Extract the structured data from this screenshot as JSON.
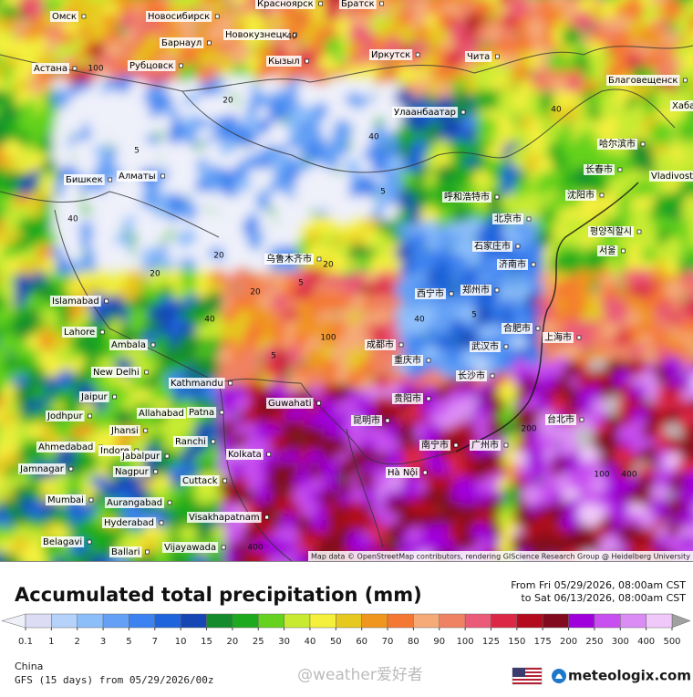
{
  "map": {
    "cities": [
      "Омск",
      "Новосибирск",
      "Красноярск",
      "Братск",
      "Барнаул",
      "Новокузнецк",
      "Рубцовск",
      "Астана",
      "Кызыл",
      "Иркутск",
      "Чита",
      "Улаанбаатар",
      "Благовещенск",
      "Хабаровск",
      "Алматы",
      "Бишкек",
      "哈尔滨市",
      "长春市",
      "Vladivostok",
      "沈阳市",
      "呼和浩特市",
      "北京市",
      "평양직할시",
      "石家庄市",
      "乌鲁木齐市",
      "济南市",
      "서울",
      "Islamabad",
      "西宁市",
      "郑州市",
      "Lahore",
      "合肥市",
      "成都市",
      "上海市",
      "Ambala",
      "武汉市",
      "重庆市",
      "New Delhi",
      "Kathmandu",
      "长沙市",
      "Jaipur",
      "Guwahati",
      "贵阳市",
      "Jodhpur",
      "Allahabad",
      "Patna",
      "台北市",
      "昆明市",
      "Jhansi",
      "广州市",
      "南宁市",
      "Ahmedabad",
      "Ranchi",
      "Indore",
      "Kolkata",
      "Jabalpur",
      "Jamnagar",
      "Nagpur",
      "Hà Nội",
      "Cuttack",
      "Mumbai",
      "Aurangabad",
      "Hyderabad",
      "Visakhapatnam",
      "Belagavi",
      "Vijayawada",
      "Ballari"
    ],
    "contour_labels": [
      40,
      20,
      100,
      40,
      5,
      5,
      20,
      40,
      5,
      20,
      40,
      100,
      5,
      20,
      40,
      100,
      200,
      400,
      400,
      20,
      5,
      40
    ],
    "attribution": "Map data © OpenStreetMap contributors, rendering GIScience Research Group @ Heidelberg University"
  },
  "legend": {
    "title": "Accumulated total precipitation (mm)",
    "period_from": "From Fri 05/29/2026, 08:00am CST",
    "period_to": "to Sat 06/13/2026, 08:00am CST",
    "ticks": [
      0.1,
      1,
      2,
      3,
      5,
      7,
      10,
      15,
      20,
      25,
      30,
      40,
      50,
      60,
      70,
      80,
      90,
      100,
      125,
      150,
      175,
      200,
      250,
      300,
      400,
      500
    ],
    "colors": [
      "#dcdcf5",
      "#b4d2fa",
      "#8cbefa",
      "#64a0f5",
      "#3c82f0",
      "#1e64dc",
      "#1446b4",
      "#148c2d",
      "#1eaa1e",
      "#64d21e",
      "#c8eb32",
      "#f5f03c",
      "#e6c81e",
      "#f0961e",
      "#f57832",
      "#f5aa78",
      "#f08264",
      "#eb5a78",
      "#dc2846",
      "#b40a1e",
      "#820a1e",
      "#a000dc",
      "#c850f0",
      "#dc8cf5",
      "#f0c8fa"
    ],
    "under_color": "#f0f0fa",
    "over_color": "#a0a0a0"
  },
  "footer": {
    "region": "China",
    "model": "GFS (15 days) from 05/29/2026/00z",
    "watermark": "@weather爱好者",
    "brand": "meteologix.com"
  }
}
